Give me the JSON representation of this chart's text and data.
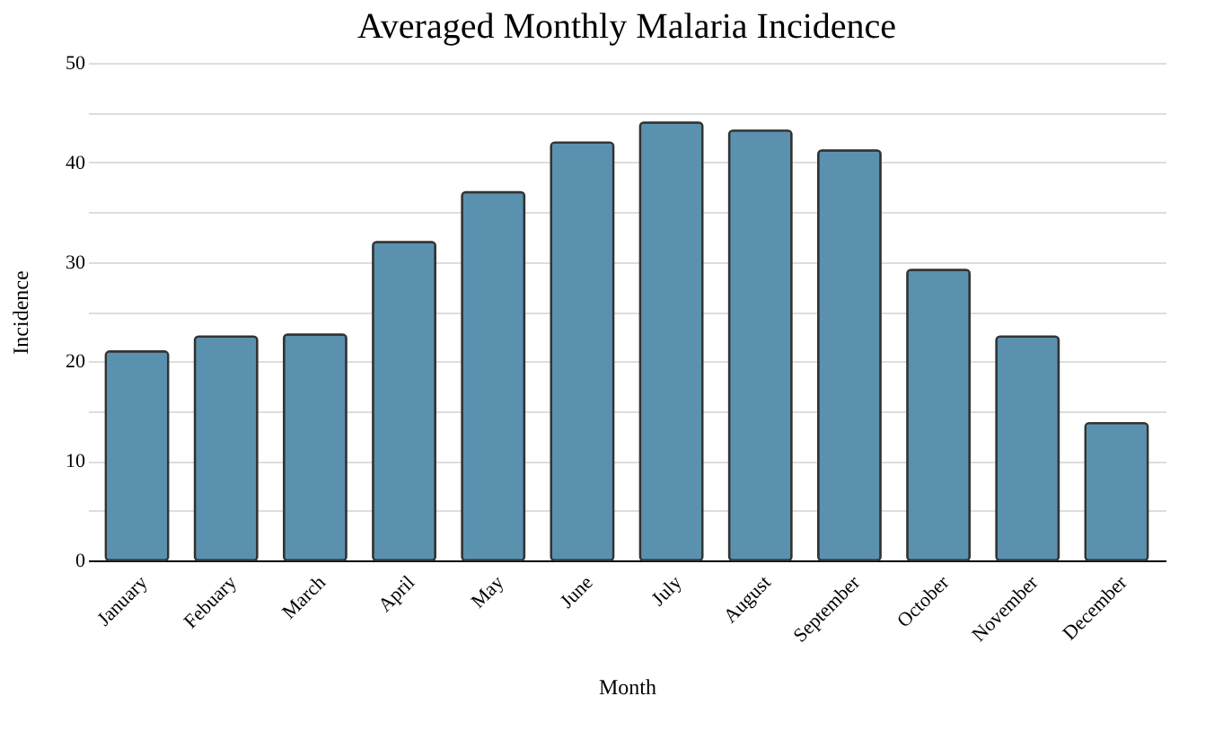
{
  "chart_data": {
    "type": "bar",
    "title": "Averaged Monthly Malaria Incidence",
    "xlabel": "Month",
    "ylabel": "Incidence",
    "categories": [
      "January",
      "Febuary",
      "March",
      "April",
      "May",
      "June",
      "July",
      "August",
      "September",
      "October",
      "November",
      "December"
    ],
    "values": [
      21,
      22.5,
      22.7,
      32,
      37,
      42,
      44,
      43.2,
      41.2,
      29.2,
      22.5,
      13.8
    ],
    "color": "#5a91ae",
    "ylim": [
      0,
      50
    ],
    "yticks": [
      0,
      {
        "value": 5,
        "label": null
      },
      10,
      {
        "value": 15,
        "label": null
      },
      20,
      {
        "value": 25,
        "label": null
      },
      30,
      {
        "value": 35,
        "label": null
      },
      40,
      {
        "value": 45,
        "label": null
      },
      50
    ],
    "grid": "y"
  }
}
